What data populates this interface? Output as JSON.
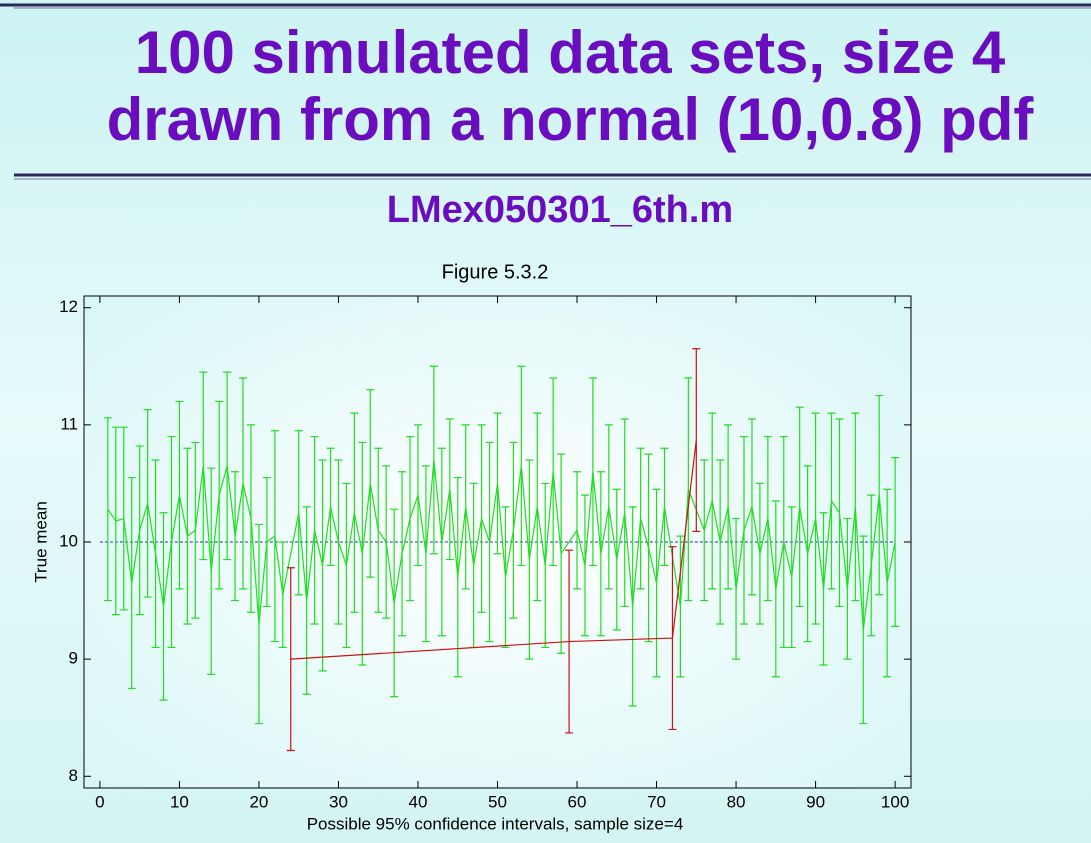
{
  "slide": {
    "title_lines": [
      "100 simulated data sets, size 4",
      "drawn from a normal (10,0.8) pdf"
    ],
    "subtitle": "LMex050301_6th.m"
  },
  "chart_data": {
    "type": "errorbar",
    "title": "Figure 5.3.2",
    "xlabel": "Possible 95% confidence intervals, sample size=4",
    "ylabel": "True mean",
    "xlim": [
      -2,
      102
    ],
    "ylim": [
      7.9,
      12.1
    ],
    "xticks": [
      0,
      10,
      20,
      30,
      40,
      50,
      60,
      70,
      80,
      90,
      100
    ],
    "yticks": [
      8,
      9,
      10,
      11,
      12
    ],
    "reference": {
      "value": 10,
      "color": "#1a3a9a"
    },
    "series": [
      {
        "color": "#22dd22",
        "x": [
          1,
          2,
          3,
          4,
          5,
          6,
          7,
          8,
          9,
          10,
          11,
          12,
          13,
          14,
          15,
          16,
          17,
          18,
          19,
          20,
          21,
          22,
          23,
          25,
          26,
          27,
          28,
          29,
          30,
          31,
          32,
          33,
          34,
          35,
          36,
          37,
          38,
          39,
          40,
          41,
          42,
          43,
          44,
          45,
          46,
          47,
          48,
          49,
          50,
          51,
          52,
          53,
          54,
          55,
          56,
          57,
          58,
          60,
          61,
          62,
          63,
          64,
          65,
          66,
          67,
          68,
          69,
          70,
          71,
          73,
          74,
          76,
          77,
          78,
          79,
          80,
          81,
          82,
          83,
          84,
          85,
          86,
          87,
          88,
          89,
          90,
          91,
          92,
          93,
          94,
          95,
          96,
          97,
          98,
          99,
          100
        ],
        "values": [
          10.28,
          10.18,
          10.2,
          9.65,
          10.1,
          10.33,
          9.9,
          9.45,
          10.0,
          10.4,
          10.05,
          10.1,
          10.65,
          9.75,
          10.4,
          10.65,
          10.05,
          10.5,
          10.2,
          9.3,
          10.0,
          10.05,
          9.55,
          10.25,
          9.5,
          10.1,
          9.8,
          10.3,
          10.0,
          9.8,
          10.25,
          9.9,
          10.5,
          10.1,
          10.0,
          9.48,
          9.9,
          10.2,
          10.4,
          9.9,
          10.7,
          10.0,
          10.45,
          9.7,
          10.3,
          9.8,
          10.2,
          10.0,
          10.5,
          9.7,
          10.1,
          10.65,
          9.85,
          10.3,
          9.8,
          10.6,
          9.9,
          10.1,
          9.8,
          10.6,
          9.9,
          10.3,
          9.85,
          10.25,
          9.45,
          10.2,
          9.95,
          9.65,
          10.3,
          9.45,
          10.45,
          10.1,
          10.35,
          10.0,
          10.3,
          9.6,
          10.1,
          10.3,
          9.9,
          10.2,
          9.6,
          10.0,
          9.7,
          10.3,
          9.9,
          10.2,
          9.6,
          10.35,
          10.25,
          9.6,
          10.3,
          9.25,
          9.8,
          10.4,
          9.65,
          10.0
        ],
        "errors": [
          0.78,
          0.8,
          0.78,
          0.9,
          0.72,
          0.8,
          0.8,
          0.8,
          0.9,
          0.8,
          0.75,
          0.75,
          0.8,
          0.88,
          0.8,
          0.8,
          0.55,
          0.9,
          0.8,
          0.85,
          0.55,
          0.9,
          0.45,
          0.7,
          0.8,
          0.8,
          0.9,
          0.5,
          0.7,
          0.7,
          0.85,
          0.95,
          0.8,
          0.7,
          0.65,
          0.8,
          0.7,
          0.7,
          0.6,
          0.75,
          0.8,
          0.8,
          0.6,
          0.85,
          0.7,
          0.7,
          0.8,
          0.85,
          0.6,
          0.6,
          0.75,
          0.85,
          0.85,
          0.8,
          0.7,
          0.8,
          0.85,
          0.5,
          0.6,
          0.8,
          0.7,
          0.7,
          0.6,
          0.8,
          0.85,
          0.6,
          0.8,
          0.8,
          0.5,
          0.6,
          0.95,
          0.6,
          0.75,
          0.7,
          0.7,
          0.6,
          0.8,
          0.75,
          0.6,
          0.7,
          0.75,
          0.9,
          0.6,
          0.85,
          0.75,
          0.9,
          0.65,
          0.75,
          0.8,
          0.6,
          0.8,
          0.8,
          0.6,
          0.85,
          0.8,
          0.72
        ]
      },
      {
        "color": "#cc1111",
        "x": [
          24,
          59,
          72,
          75
        ],
        "values": [
          9.0,
          9.15,
          9.18,
          10.87
        ],
        "errors": [
          0.78,
          0.78,
          0.78,
          0.78
        ]
      }
    ]
  }
}
